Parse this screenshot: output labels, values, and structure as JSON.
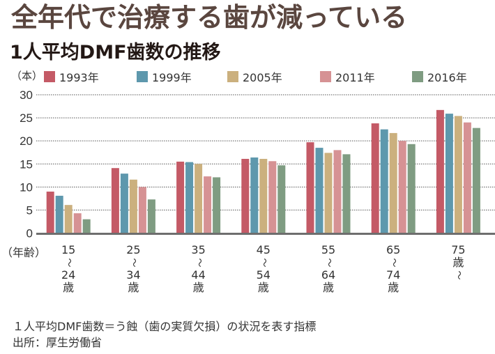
{
  "headline": "全年代で治療する歯が減っている",
  "subtitle": "1人平均DMF歯数の推移",
  "unit_label": "（本）",
  "x_axis_label": "（年齢）",
  "note": "１人平均DMF歯数＝う蝕（歯の実質欠損）の状況を表す指標",
  "source": "出所：厚生労働省",
  "chart_data": {
    "type": "bar",
    "title": "1人平均DMF歯数の推移",
    "xlabel": "（年齢）",
    "ylabel": "（本）",
    "ylim": [
      0,
      30
    ],
    "yticks": [
      0,
      5,
      10,
      15,
      20,
      25,
      30
    ],
    "grid": true,
    "legend_position": "top",
    "categories": [
      [
        "15",
        "～",
        "24",
        "歳"
      ],
      [
        "25",
        "～",
        "34",
        "歳"
      ],
      [
        "35",
        "～",
        "44",
        "歳"
      ],
      [
        "45",
        "～",
        "54",
        "歳"
      ],
      [
        "55",
        "～",
        "64",
        "歳"
      ],
      [
        "65",
        "～",
        "74",
        "歳"
      ],
      [
        "75",
        "歳",
        "～"
      ]
    ],
    "series": [
      {
        "name": "1993年",
        "color": "#c45a66",
        "values": [
          9.0,
          14.1,
          15.5,
          16.1,
          19.7,
          23.8,
          26.7
        ]
      },
      {
        "name": "1999年",
        "color": "#5e98ad",
        "values": [
          8.1,
          12.9,
          15.4,
          16.4,
          18.5,
          22.5,
          25.9
        ]
      },
      {
        "name": "2005年",
        "color": "#cbb07e",
        "values": [
          6.1,
          11.6,
          15.0,
          16.1,
          17.4,
          21.7,
          25.4
        ]
      },
      {
        "name": "2011年",
        "color": "#d69294",
        "values": [
          4.3,
          10.0,
          12.3,
          15.6,
          18.0,
          20.0,
          24.0
        ]
      },
      {
        "name": "2016年",
        "color": "#7f9c82",
        "values": [
          3.0,
          7.3,
          12.1,
          14.7,
          17.1,
          19.3,
          22.8
        ]
      }
    ]
  }
}
